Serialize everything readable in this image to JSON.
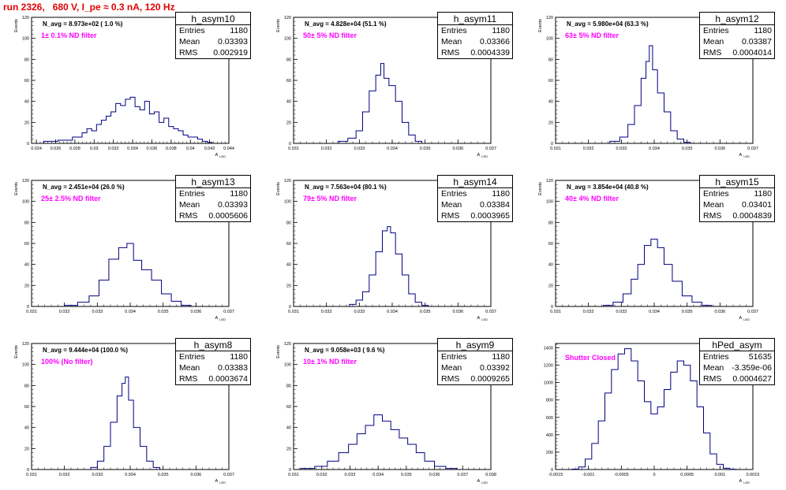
{
  "title": "run 2326,   680 V, I_pe ≈ 0.3 nA, 120 Hz",
  "colors": {
    "title": "#e00000",
    "filter_text": "#ff00ff",
    "hist_line": "#000080",
    "axis": "#000000"
  },
  "chart_data": [
    {
      "type": "histogram",
      "name": "h_asym10",
      "navg": "N_avg = 8.973e+02 ( 1.0 %)",
      "filter": "1± 0.1% ND filter",
      "stats": [
        [
          "Entries",
          "1180"
        ],
        [
          "Mean",
          "0.03393"
        ],
        [
          "RMS",
          "0.002919"
        ]
      ],
      "xlabel": "A_LED",
      "ylabel": "Events",
      "xlim": [
        0.0235,
        0.044
      ],
      "ylim": [
        0,
        120
      ],
      "xticks": [
        0.024,
        0.026,
        0.028,
        0.03,
        0.032,
        0.034,
        0.036,
        0.038,
        0.04,
        0.042,
        0.044
      ],
      "xtick_labels": [
        "0.024",
        "0.026",
        "0.028",
        "0.03",
        "0.032",
        "0.034",
        "0.036",
        "0.038",
        "0.04",
        "0.042",
        "0.044"
      ],
      "yticks": [
        0,
        20,
        40,
        60,
        80,
        100,
        120
      ],
      "x": [
        0.0255,
        0.027,
        0.0285,
        0.029,
        0.0295,
        0.03,
        0.0305,
        0.031,
        0.0315,
        0.032,
        0.0325,
        0.033,
        0.0335,
        0.034,
        0.0345,
        0.035,
        0.0355,
        0.036,
        0.0365,
        0.037,
        0.0375,
        0.038,
        0.0385,
        0.039,
        0.0395,
        0.04,
        0.0405,
        0.041,
        0.0415,
        0.042
      ],
      "y": [
        2,
        3,
        6,
        10,
        14,
        12,
        18,
        22,
        26,
        30,
        38,
        36,
        42,
        44,
        35,
        32,
        40,
        28,
        30,
        20,
        24,
        16,
        14,
        12,
        8,
        6,
        6,
        4,
        2,
        1
      ]
    },
    {
      "type": "histogram",
      "name": "h_asym11",
      "navg": "N_avg = 4.828e+04 (51.1 %)",
      "filter": "50± 5% ND filter",
      "stats": [
        [
          "Entries",
          "1180"
        ],
        [
          "Mean",
          "0.03366"
        ],
        [
          "RMS",
          "0.0004339"
        ]
      ],
      "xlabel": "A_LED",
      "ylabel": "Events",
      "xlim": [
        0.031,
        0.037
      ],
      "ylim": [
        0,
        120
      ],
      "xticks": [
        0.031,
        0.032,
        0.033,
        0.034,
        0.035,
        0.036,
        0.037
      ],
      "xtick_labels": [
        "0.031",
        "0.032",
        "0.033",
        "0.034",
        "0.035",
        "0.036",
        "0.037"
      ],
      "yticks": [
        0,
        20,
        40,
        60,
        80,
        100,
        120
      ],
      "x": [
        0.0325,
        0.0328,
        0.033,
        0.0332,
        0.0334,
        0.0336,
        0.0337,
        0.0338,
        0.034,
        0.0342,
        0.0344,
        0.0346,
        0.0348
      ],
      "y": [
        2,
        5,
        12,
        30,
        50,
        65,
        76,
        62,
        55,
        40,
        20,
        8,
        2
      ]
    },
    {
      "type": "histogram",
      "name": "h_asym12",
      "navg": "N_avg = 5.980e+04 (63.3 %)",
      "filter": "63± 5% ND filter",
      "stats": [
        [
          "Entries",
          "1180"
        ],
        [
          "Mean",
          "0.03387"
        ],
        [
          "RMS",
          "0.0004014"
        ]
      ],
      "xlabel": "A_LED",
      "ylabel": "Events",
      "xlim": [
        0.031,
        0.037
      ],
      "ylim": [
        0,
        120
      ],
      "xticks": [
        0.031,
        0.032,
        0.033,
        0.034,
        0.035,
        0.036,
        0.037
      ],
      "xtick_labels": [
        "0.031",
        "0.032",
        "0.033",
        "0.034",
        "0.035",
        "0.036",
        "0.037"
      ],
      "yticks": [
        0,
        20,
        40,
        60,
        80,
        100,
        120
      ],
      "x": [
        0.0328,
        0.0331,
        0.0333,
        0.0335,
        0.0337,
        0.0338,
        0.0339,
        0.034,
        0.0342,
        0.0344,
        0.0346,
        0.0348,
        0.035
      ],
      "y": [
        2,
        6,
        18,
        36,
        62,
        78,
        93,
        70,
        48,
        30,
        12,
        4,
        1
      ]
    },
    {
      "type": "histogram",
      "name": "h_asym13",
      "navg": "N_avg = 2.451e+04 (26.0 %)",
      "filter": "25± 2.5% ND filter",
      "stats": [
        [
          "Entries",
          "1180"
        ],
        [
          "Mean",
          "0.03393"
        ],
        [
          "RMS",
          "0.0005606"
        ]
      ],
      "xlabel": "A_LED",
      "ylabel": "Events",
      "xlim": [
        0.031,
        0.037
      ],
      "ylim": [
        0,
        120
      ],
      "xticks": [
        0.031,
        0.032,
        0.033,
        0.034,
        0.035,
        0.036,
        0.037
      ],
      "xtick_labels": [
        "0.031",
        "0.032",
        "0.033",
        "0.034",
        "0.035",
        "0.036",
        "0.037"
      ],
      "yticks": [
        0,
        20,
        40,
        60,
        80,
        100,
        120
      ],
      "x": [
        0.0322,
        0.0326,
        0.0329,
        0.0332,
        0.0335,
        0.0338,
        0.034,
        0.0342,
        0.0345,
        0.0348,
        0.0351,
        0.0354,
        0.0357
      ],
      "y": [
        1,
        4,
        10,
        25,
        45,
        56,
        60,
        44,
        35,
        25,
        12,
        5,
        1
      ]
    },
    {
      "type": "histogram",
      "name": "h_asym14",
      "navg": "N_avg = 7.563e+04 (80.1 %)",
      "filter": "79± 5% ND filter",
      "stats": [
        [
          "Entries",
          "1180"
        ],
        [
          "Mean",
          "0.03384"
        ],
        [
          "RMS",
          "0.0003965"
        ]
      ],
      "xlabel": "A_LED",
      "ylabel": "Events",
      "xlim": [
        0.031,
        0.037
      ],
      "ylim": [
        0,
        120
      ],
      "xticks": [
        0.031,
        0.032,
        0.033,
        0.034,
        0.035,
        0.036,
        0.037
      ],
      "xtick_labels": [
        "0.031",
        "0.032",
        "0.033",
        "0.034",
        "0.035",
        "0.036",
        "0.037"
      ],
      "yticks": [
        0,
        20,
        40,
        60,
        80,
        100,
        120
      ],
      "x": [
        0.0328,
        0.033,
        0.0332,
        0.0334,
        0.0336,
        0.0338,
        0.0339,
        0.034,
        0.0342,
        0.0344,
        0.0346,
        0.0348,
        0.035
      ],
      "y": [
        2,
        6,
        14,
        30,
        52,
        72,
        76,
        70,
        50,
        30,
        12,
        4,
        1
      ]
    },
    {
      "type": "histogram",
      "name": "h_asym15",
      "navg": "N_avg = 3.854e+04 (40.8 %)",
      "filter": "40± 4% ND filter",
      "stats": [
        [
          "Entries",
          "1180"
        ],
        [
          "Mean",
          "0.03401"
        ],
        [
          "RMS",
          "0.0004839"
        ]
      ],
      "xlabel": "A_LED",
      "ylabel": "Events",
      "xlim": [
        0.031,
        0.037
      ],
      "ylim": [
        0,
        120
      ],
      "xticks": [
        0.031,
        0.032,
        0.033,
        0.034,
        0.035,
        0.036,
        0.037
      ],
      "xtick_labels": [
        "0.031",
        "0.032",
        "0.033",
        "0.034",
        "0.035",
        "0.036",
        "0.037"
      ],
      "yticks": [
        0,
        20,
        40,
        60,
        80,
        100,
        120
      ],
      "x": [
        0.0326,
        0.0329,
        0.0332,
        0.0334,
        0.0336,
        0.0338,
        0.034,
        0.0342,
        0.0344,
        0.0347,
        0.035,
        0.0353,
        0.0356
      ],
      "y": [
        1,
        4,
        12,
        26,
        40,
        58,
        64,
        56,
        40,
        24,
        10,
        4,
        1
      ]
    },
    {
      "type": "histogram",
      "name": "h_asym8",
      "navg": "N_avg = 9.444e+04 (100.0 %)",
      "filter": "100% (No filter)",
      "stats": [
        [
          "Entries",
          "1180"
        ],
        [
          "Mean",
          "0.03383"
        ],
        [
          "RMS",
          "0.0003674"
        ]
      ],
      "xlabel": "A_LED",
      "ylabel": "Events",
      "xlim": [
        0.031,
        0.037
      ],
      "ylim": [
        0,
        120
      ],
      "xticks": [
        0.031,
        0.032,
        0.033,
        0.034,
        0.035,
        0.036,
        0.037
      ],
      "xtick_labels": [
        "0.031",
        "0.032",
        "0.033",
        "0.034",
        "0.035",
        "0.036",
        "0.037"
      ],
      "yticks": [
        0,
        20,
        40,
        60,
        80,
        100,
        120
      ],
      "x": [
        0.0329,
        0.0331,
        0.0333,
        0.0335,
        0.0337,
        0.0338,
        0.0339,
        0.034,
        0.0342,
        0.0344,
        0.0346,
        0.0348
      ],
      "y": [
        2,
        8,
        22,
        45,
        70,
        82,
        88,
        66,
        40,
        22,
        8,
        2
      ]
    },
    {
      "type": "histogram",
      "name": "h_asym9",
      "navg": "N_avg = 9.058e+03 ( 9.6 %)",
      "filter": "10± 1% ND filter",
      "stats": [
        [
          "Entries",
          "1180"
        ],
        [
          "Mean",
          "0.03392"
        ],
        [
          "RMS",
          "0.0009265"
        ]
      ],
      "xlabel": "A_LED",
      "ylabel": "Events",
      "xlim": [
        0.031,
        0.038
      ],
      "ylim": [
        0,
        120
      ],
      "xticks": [
        0.031,
        0.032,
        0.033,
        0.034,
        0.035,
        0.036,
        0.037,
        0.038
      ],
      "xtick_labels": [
        "0.031",
        "0.032",
        "0.033",
        "0.034",
        "0.035",
        "0.036",
        "0.037",
        "0.038"
      ],
      "yticks": [
        0,
        20,
        40,
        60,
        80,
        100,
        120
      ],
      "x": [
        0.0315,
        0.032,
        0.0324,
        0.0328,
        0.0331,
        0.0334,
        0.0337,
        0.034,
        0.0343,
        0.0346,
        0.0349,
        0.0352,
        0.0355,
        0.0358,
        0.0362,
        0.0366
      ],
      "y": [
        1,
        3,
        8,
        16,
        24,
        34,
        42,
        52,
        46,
        38,
        30,
        24,
        16,
        8,
        3,
        1
      ]
    },
    {
      "type": "histogram",
      "name": "hPed_asym",
      "navg": "",
      "filter": "Shutter Closed",
      "stats": [
        [
          "Entries",
          "51635"
        ],
        [
          "Mean",
          "-3.359e-06"
        ],
        [
          "RMS",
          "0.0004627"
        ]
      ],
      "xlabel": "A_LED",
      "ylabel": "",
      "xlim": [
        -0.0015,
        0.0015
      ],
      "ylim": [
        0,
        1450
      ],
      "xticks": [
        -0.0015,
        -0.001,
        -0.0005,
        0,
        0.0005,
        0.001,
        0.0015
      ],
      "xtick_labels": [
        "-0.0015",
        "-0.001",
        "-0.0005",
        "0",
        "0.0005",
        "0.001",
        "0.0015"
      ],
      "yticks": [
        0,
        200,
        400,
        600,
        800,
        1000,
        1200,
        1400
      ],
      "x": [
        -0.0012,
        -0.0011,
        -0.001,
        -0.0009,
        -0.0008,
        -0.0007,
        -0.0006,
        -0.0005,
        -0.0004,
        -0.0003,
        -0.0002,
        -0.0001,
        0,
        0.0001,
        0.0002,
        0.0003,
        0.0004,
        0.0005,
        0.0006,
        0.0007,
        0.0008,
        0.0009,
        0.001,
        0.0011,
        0.0012
      ],
      "y": [
        5,
        30,
        120,
        300,
        560,
        880,
        1150,
        1330,
        1390,
        1250,
        1020,
        780,
        640,
        720,
        920,
        1120,
        1250,
        1200,
        1020,
        720,
        420,
        180,
        60,
        15,
        3
      ]
    }
  ]
}
